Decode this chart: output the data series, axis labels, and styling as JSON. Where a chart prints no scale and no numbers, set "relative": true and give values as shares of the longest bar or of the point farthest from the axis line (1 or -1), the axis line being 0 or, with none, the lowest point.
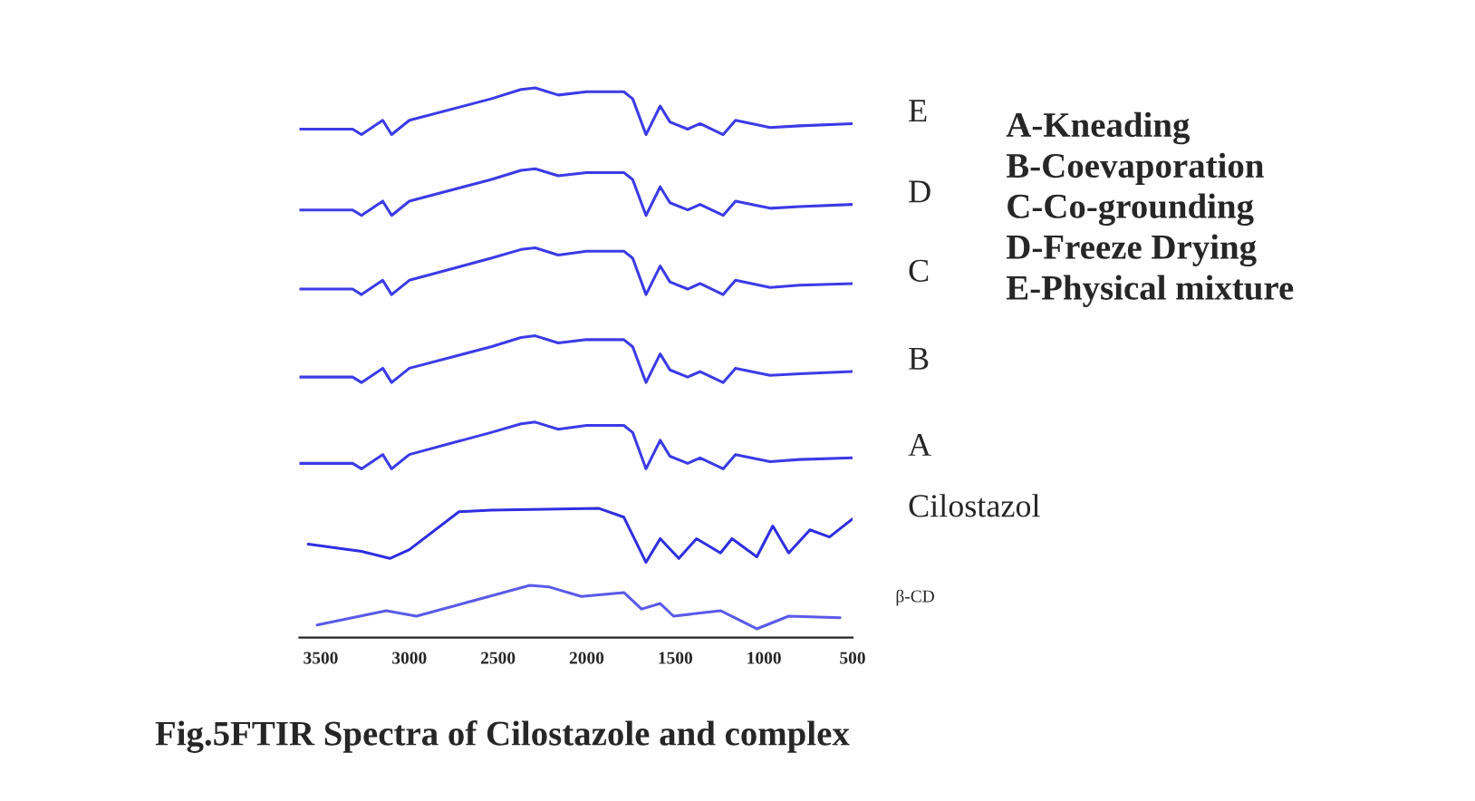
{
  "chart_data": {
    "type": "line",
    "relative": true,
    "xlim": [
      3620,
      500
    ],
    "xticks": [
      3500,
      3000,
      2500,
      2000,
      1500,
      1000,
      500
    ],
    "grid": false,
    "legend": false,
    "marker": "none",
    "line_style": "solid",
    "series": [
      {
        "name": "E",
        "color": "#3b3be6",
        "x": [
          3620,
          3320,
          3270,
          3150,
          3100,
          3000,
          2540,
          2370,
          2290,
          2160,
          2000,
          1790,
          1740,
          1665,
          1585,
          1530,
          1430,
          1360,
          1230,
          1160,
          965,
          800,
          500
        ],
        "values": [
          0.925,
          0.925,
          0.915,
          0.941,
          0.915,
          0.941,
          0.98,
          0.997,
          1.0,
          0.987,
          0.993,
          0.993,
          0.98,
          0.915,
          0.967,
          0.938,
          0.925,
          0.935,
          0.915,
          0.941,
          0.928,
          0.931,
          0.935
        ]
      },
      {
        "name": "D",
        "color": "#3b3be6",
        "x": [
          3620,
          3320,
          3270,
          3150,
          3100,
          3000,
          2540,
          2370,
          2290,
          2160,
          2000,
          1790,
          1740,
          1665,
          1585,
          1530,
          1430,
          1360,
          1230,
          1160,
          965,
          800,
          500
        ],
        "values": [
          0.778,
          0.778,
          0.768,
          0.794,
          0.768,
          0.794,
          0.833,
          0.85,
          0.853,
          0.84,
          0.846,
          0.846,
          0.833,
          0.768,
          0.82,
          0.791,
          0.778,
          0.788,
          0.768,
          0.794,
          0.781,
          0.784,
          0.788
        ]
      },
      {
        "name": "C",
        "color": "#3b3be6",
        "x": [
          3620,
          3320,
          3270,
          3150,
          3100,
          3000,
          2540,
          2370,
          2290,
          2160,
          2000,
          1790,
          1740,
          1665,
          1585,
          1530,
          1430,
          1360,
          1230,
          1160,
          965,
          800,
          500
        ],
        "values": [
          0.634,
          0.634,
          0.624,
          0.65,
          0.624,
          0.65,
          0.69,
          0.706,
          0.709,
          0.696,
          0.703,
          0.703,
          0.69,
          0.624,
          0.676,
          0.647,
          0.634,
          0.644,
          0.624,
          0.65,
          0.637,
          0.641,
          0.644
        ]
      },
      {
        "name": "B",
        "color": "#3b3be6",
        "x": [
          3620,
          3320,
          3270,
          3150,
          3100,
          3000,
          2540,
          2370,
          2290,
          2160,
          2000,
          1790,
          1740,
          1665,
          1585,
          1530,
          1430,
          1360,
          1230,
          1160,
          965,
          800,
          500
        ],
        "values": [
          0.474,
          0.474,
          0.464,
          0.49,
          0.464,
          0.49,
          0.529,
          0.546,
          0.549,
          0.536,
          0.542,
          0.542,
          0.529,
          0.464,
          0.516,
          0.487,
          0.474,
          0.484,
          0.464,
          0.49,
          0.477,
          0.48,
          0.484
        ]
      },
      {
        "name": "A",
        "color": "#3b3be6",
        "x": [
          3620,
          3320,
          3270,
          3150,
          3100,
          3000,
          2540,
          2370,
          2290,
          2160,
          2000,
          1790,
          1740,
          1665,
          1585,
          1530,
          1430,
          1360,
          1230,
          1160,
          965,
          800,
          500
        ],
        "values": [
          0.317,
          0.317,
          0.307,
          0.333,
          0.307,
          0.333,
          0.373,
          0.389,
          0.392,
          0.379,
          0.386,
          0.386,
          0.373,
          0.307,
          0.359,
          0.33,
          0.317,
          0.327,
          0.307,
          0.333,
          0.32,
          0.324,
          0.327
        ]
      },
      {
        "name": "Cilostazol",
        "color": "#2e2ee0",
        "x": [
          3570,
          3270,
          3110,
          3000,
          2720,
          2540,
          1930,
          1790,
          1665,
          1585,
          1480,
          1380,
          1245,
          1180,
          1040,
          950,
          860,
          740,
          630,
          500
        ],
        "values": [
          0.17,
          0.157,
          0.144,
          0.16,
          0.229,
          0.232,
          0.235,
          0.219,
          0.137,
          0.18,
          0.144,
          0.18,
          0.154,
          0.18,
          0.147,
          0.203,
          0.154,
          0.196,
          0.183,
          0.216
        ]
      },
      {
        "name": "β-CD",
        "color": "#5a5ae8",
        "x": [
          3520,
          3130,
          2960,
          2320,
          2210,
          2030,
          1790,
          1690,
          1585,
          1510,
          1245,
          1040,
          860,
          570
        ],
        "values": [
          0.023,
          0.049,
          0.039,
          0.095,
          0.092,
          0.075,
          0.082,
          0.052,
          0.062,
          0.039,
          0.049,
          0.016,
          0.039,
          0.036
        ]
      }
    ],
    "annotations": [
      "A-Kneading\nB-Coevaporation\nC-Co-grounding\nD-Freeze Drying\nE-Physical mixture",
      "Fig.5FTIR Spectra of Cilostazole and complex"
    ]
  }
}
